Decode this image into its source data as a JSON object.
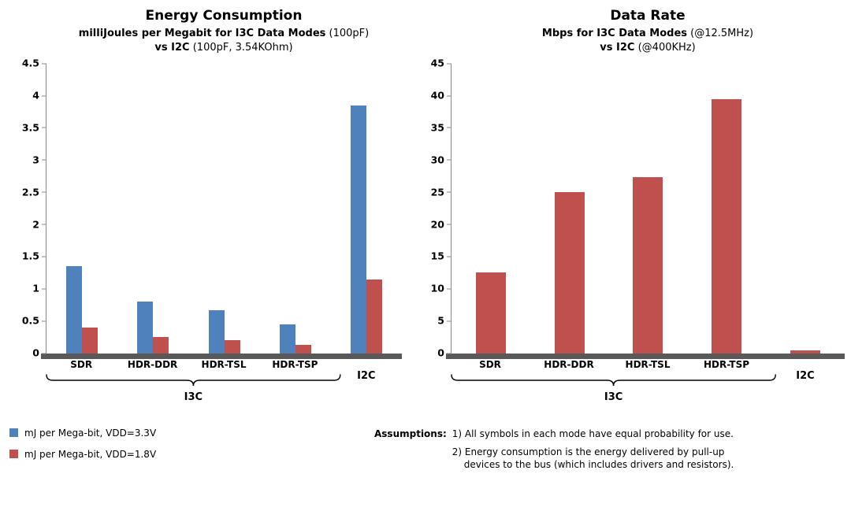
{
  "chart_data": [
    {
      "type": "bar",
      "title": "Energy Consumption",
      "subtitle_lines": [
        {
          "bold": "milliJoules per Megabit for I3C Data Modes",
          "normal": " (100pF)"
        },
        {
          "bold": "vs I2C",
          "normal": " (100pF, 3.54KOhm)"
        }
      ],
      "categories": [
        "SDR",
        "HDR-DDR",
        "HDR-TSL",
        "HDR-TSP",
        "I2C"
      ],
      "series": [
        {
          "name": "mJ per Mega-bit, VDD=3.3V",
          "color": "#4f81bd",
          "values": [
            1.35,
            0.8,
            0.67,
            0.45,
            3.85
          ]
        },
        {
          "name": "mJ per Mega-bit, VDD=1.8V",
          "color": "#c0504d",
          "values": [
            0.4,
            0.25,
            0.2,
            0.13,
            1.15
          ]
        }
      ],
      "ylim": [
        0,
        4.5
      ],
      "ytick_step": 0.5,
      "grid": false,
      "legend_position": "bottom-left",
      "group": {
        "label": "I3C",
        "span": 4
      }
    },
    {
      "type": "bar",
      "title": "Data Rate",
      "subtitle_lines": [
        {
          "bold": "Mbps for I3C Data Modes",
          "normal": " (@12.5MHz)"
        },
        {
          "bold": "vs I2C",
          "normal": " (@400KHz)"
        }
      ],
      "categories": [
        "SDR",
        "HDR-DDR",
        "HDR-TSL",
        "HDR-TSP",
        "I2C"
      ],
      "series": [
        {
          "name": "Mbps",
          "color": "#c0504d",
          "values": [
            12.5,
            25,
            27.3,
            39.5,
            0.4
          ]
        }
      ],
      "ylim": [
        0,
        45
      ],
      "ytick_step": 5,
      "grid": false,
      "group": {
        "label": "I3C",
        "span": 4
      }
    }
  ],
  "colors": {
    "series_blue": "#4f81bd",
    "series_red": "#c0504d",
    "axis_gray": "#8a8a8a",
    "baseline_gray": "#595959"
  },
  "legend": {
    "items": [
      {
        "label": "mJ per Mega-bit, VDD=3.3V",
        "color": "#4f81bd"
      },
      {
        "label": "mJ per Mega-bit, VDD=1.8V",
        "color": "#c0504d"
      }
    ]
  },
  "assumptions": {
    "label": "Assumptions:",
    "items": [
      "1) All symbols in each mode have equal probability for use.",
      "2) Energy consumption is the energy delivered by pull-up devices to the bus (which includes drivers and resistors)."
    ]
  }
}
